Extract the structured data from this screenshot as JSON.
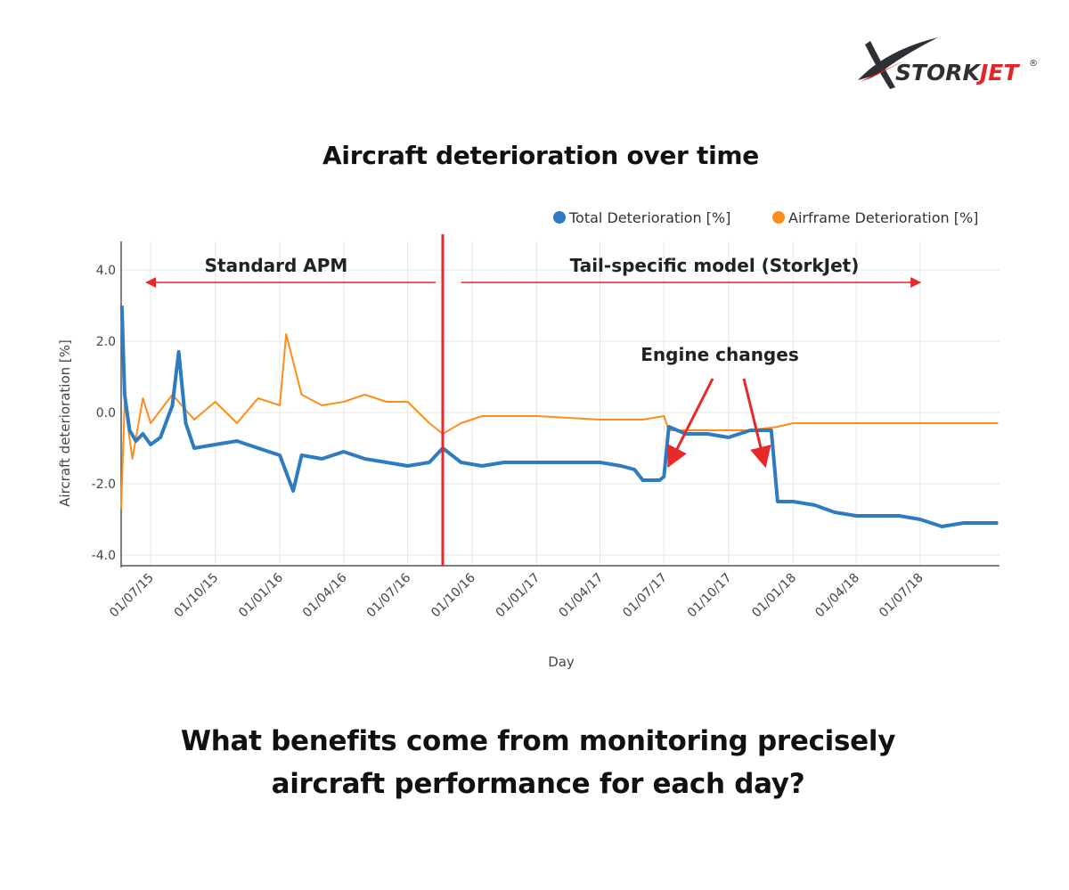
{
  "brand": {
    "logo_text_prefix": "STORK",
    "logo_text_suffix": "JET",
    "registered_mark": "®",
    "colors": {
      "dark": "#2f2f36",
      "red": "#e42527"
    }
  },
  "title": "Aircraft deterioration over time",
  "question": {
    "line1": "What benefits come from monitoring precisely",
    "line2": "aircraft performance for each day?"
  },
  "chart_data": {
    "type": "line",
    "xlabel": "Day",
    "ylabel": "Aircraft deterioration [%]",
    "ylim": [
      -4.3,
      4.8
    ],
    "y_ticks": [
      "4.0",
      "2.0",
      "0.0",
      "-2.0",
      "-4.0"
    ],
    "y_tick_values": [
      4,
      2,
      0,
      -2,
      -4
    ],
    "x_range": [
      "2015-05-20",
      "2018-10-22"
    ],
    "x_ticks": [
      "01/07/15",
      "01/10/15",
      "01/01/16",
      "01/04/16",
      "01/07/16",
      "01/10/16",
      "01/01/17",
      "01/04/17",
      "01/07/17",
      "01/10/17",
      "01/01/18",
      "01/04/18",
      "01/07/18"
    ],
    "x_tick_dates": [
      "2015-07-01",
      "2015-10-01",
      "2016-01-01",
      "2016-04-01",
      "2016-07-01",
      "2016-10-01",
      "2017-01-01",
      "2017-04-01",
      "2017-07-01",
      "2017-10-01",
      "2018-01-01",
      "2018-04-01",
      "2018-07-01"
    ],
    "grid": true,
    "legend_position": "top-right",
    "series": [
      {
        "name": "Total Deterioration [%]",
        "color": "#2f7bbf",
        "points": [
          [
            "2015-05-21",
            3.0
          ],
          [
            "2015-05-25",
            0.5
          ],
          [
            "2015-06-01",
            -0.5
          ],
          [
            "2015-06-10",
            -0.8
          ],
          [
            "2015-06-20",
            -0.6
          ],
          [
            "2015-07-01",
            -0.9
          ],
          [
            "2015-07-15",
            -0.7
          ],
          [
            "2015-08-01",
            0.2
          ],
          [
            "2015-08-10",
            1.7
          ],
          [
            "2015-08-20",
            -0.3
          ],
          [
            "2015-09-01",
            -1.0
          ],
          [
            "2015-10-01",
            -0.9
          ],
          [
            "2015-11-01",
            -0.8
          ],
          [
            "2015-12-01",
            -1.0
          ],
          [
            "2016-01-01",
            -1.2
          ],
          [
            "2016-01-20",
            -2.2
          ],
          [
            "2016-02-01",
            -1.2
          ],
          [
            "2016-03-01",
            -1.3
          ],
          [
            "2016-04-01",
            -1.1
          ],
          [
            "2016-05-01",
            -1.3
          ],
          [
            "2016-06-01",
            -1.4
          ],
          [
            "2016-07-01",
            -1.5
          ],
          [
            "2016-08-01",
            -1.4
          ],
          [
            "2016-08-20",
            -1.0
          ],
          [
            "2016-09-15",
            -1.4
          ],
          [
            "2016-10-15",
            -1.5
          ],
          [
            "2016-11-15",
            -1.4
          ],
          [
            "2017-01-01",
            -1.4
          ],
          [
            "2017-04-01",
            -1.4
          ],
          [
            "2017-05-01",
            -1.5
          ],
          [
            "2017-05-20",
            -1.6
          ],
          [
            "2017-06-01",
            -1.9
          ],
          [
            "2017-06-25",
            -1.9
          ],
          [
            "2017-07-01",
            -1.8
          ],
          [
            "2017-07-08",
            -0.4
          ],
          [
            "2017-08-01",
            -0.6
          ],
          [
            "2017-09-01",
            -0.6
          ],
          [
            "2017-10-01",
            -0.7
          ],
          [
            "2017-11-01",
            -0.5
          ],
          [
            "2017-12-01",
            -0.5
          ],
          [
            "2017-12-10",
            -2.5
          ],
          [
            "2018-01-01",
            -2.5
          ],
          [
            "2018-02-01",
            -2.6
          ],
          [
            "2018-03-01",
            -2.8
          ],
          [
            "2018-04-01",
            -2.9
          ],
          [
            "2018-05-01",
            -2.9
          ],
          [
            "2018-06-01",
            -2.9
          ],
          [
            "2018-07-01",
            -3.0
          ],
          [
            "2018-08-01",
            -3.2
          ],
          [
            "2018-09-01",
            -3.1
          ],
          [
            "2018-10-20",
            -3.1
          ]
        ]
      },
      {
        "name": "Airframe Deterioration [%]",
        "color": "#ff8c1a",
        "points": [
          [
            "2015-05-20",
            -2.7
          ],
          [
            "2015-05-25",
            0.3
          ],
          [
            "2015-06-05",
            -1.3
          ],
          [
            "2015-06-20",
            0.4
          ],
          [
            "2015-07-01",
            -0.3
          ],
          [
            "2015-08-01",
            0.5
          ],
          [
            "2015-09-01",
            -0.2
          ],
          [
            "2015-10-01",
            0.3
          ],
          [
            "2015-11-01",
            -0.3
          ],
          [
            "2015-12-01",
            0.4
          ],
          [
            "2016-01-01",
            0.2
          ],
          [
            "2016-01-10",
            2.2
          ],
          [
            "2016-02-01",
            0.5
          ],
          [
            "2016-03-01",
            0.2
          ],
          [
            "2016-04-01",
            0.3
          ],
          [
            "2016-05-01",
            0.5
          ],
          [
            "2016-06-01",
            0.3
          ],
          [
            "2016-07-01",
            0.3
          ],
          [
            "2016-08-01",
            -0.3
          ],
          [
            "2016-08-20",
            -0.6
          ],
          [
            "2016-09-15",
            -0.3
          ],
          [
            "2016-10-15",
            -0.1
          ],
          [
            "2017-01-01",
            -0.1
          ],
          [
            "2017-04-01",
            -0.2
          ],
          [
            "2017-06-01",
            -0.2
          ],
          [
            "2017-07-01",
            -0.1
          ],
          [
            "2017-07-08",
            -0.5
          ],
          [
            "2017-09-01",
            -0.5
          ],
          [
            "2017-11-01",
            -0.5
          ],
          [
            "2017-12-10",
            -0.4
          ],
          [
            "2018-01-01",
            -0.3
          ],
          [
            "2018-03-01",
            -0.3
          ],
          [
            "2018-06-01",
            -0.3
          ],
          [
            "2018-10-20",
            -0.3
          ]
        ]
      }
    ],
    "annotations": {
      "standard_apm": "Standard APM",
      "tail_specific": "Tail-specific model (StorkJet)",
      "engine_changes": "Engine changes",
      "model_change_date": "2016-08-20",
      "standard_arrow_dates": [
        "2015-06-25",
        "2016-08-10"
      ],
      "tail_arrow_dates": [
        "2016-09-15",
        "2018-07-01"
      ],
      "engine_change_dates": [
        "2017-07-05",
        "2017-12-05"
      ]
    }
  }
}
